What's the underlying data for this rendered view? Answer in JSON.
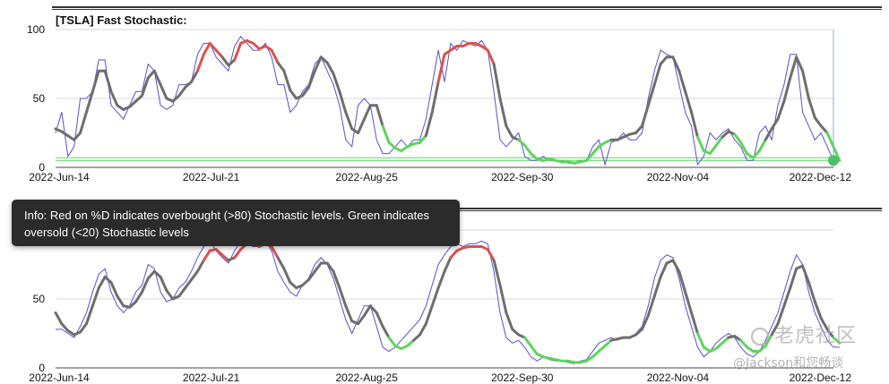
{
  "panels": [
    {
      "title": "[TSLA] Fast Stochastic:"
    },
    {
      "title": ""
    }
  ],
  "tooltip": {
    "text": "Info: Red on %D indicates overbought (>80) Stochastic levels. Green indicates oversold (<20) Stochastic levels"
  },
  "watermark": {
    "line1": "老虎社区",
    "line2": "@Jackson和您畅谈"
  },
  "colors": {
    "k_line": "#5b4fc9",
    "d_line": "#6e6e6e",
    "overbought": "#d9534f",
    "oversold": "#5cd65c",
    "grid": "#d8d8d8",
    "marker": "#4cbf6a"
  },
  "chart_data": [
    {
      "type": "line",
      "title": "[TSLA] Fast Stochastic:",
      "ylim": [
        0,
        100
      ],
      "yticks": [
        "0",
        "50",
        "100"
      ],
      "xticks": [
        "2022-Jun-14",
        "2022-Jul-21",
        "2022-Aug-25",
        "2022-Sep-30",
        "2022-Nov-04",
        "2022-Dec-12"
      ],
      "xrange": [
        0,
        126
      ],
      "reference_lines": [
        5,
        7
      ],
      "series": [
        {
          "role": "k",
          "values": [
            25,
            40,
            8,
            15,
            50,
            50,
            55,
            78,
            78,
            45,
            40,
            35,
            45,
            55,
            55,
            75,
            70,
            45,
            42,
            45,
            60,
            60,
            62,
            82,
            90,
            90,
            80,
            75,
            70,
            88,
            95,
            90,
            85,
            85,
            90,
            80,
            60,
            60,
            40,
            45,
            55,
            60,
            75,
            80,
            70,
            60,
            45,
            20,
            15,
            45,
            50,
            45,
            20,
            10,
            10,
            15,
            20,
            15,
            20,
            20,
            35,
            60,
            85,
            62,
            90,
            85,
            92,
            90,
            88,
            92,
            85,
            55,
            20,
            15,
            20,
            25,
            8,
            5,
            5,
            8,
            5,
            5,
            5,
            3,
            3,
            5,
            5,
            15,
            20,
            2,
            18,
            20,
            25,
            20,
            20,
            25,
            50,
            70,
            85,
            82,
            80,
            60,
            40,
            30,
            2,
            8,
            25,
            20,
            25,
            28,
            20,
            15,
            5,
            5,
            25,
            30,
            20,
            45,
            60,
            82,
            82,
            40,
            30,
            20,
            25,
            15,
            5,
            5
          ]
        },
        {
          "role": "d",
          "values": [
            28,
            26,
            23,
            20,
            25,
            40,
            55,
            70,
            70,
            55,
            45,
            42,
            44,
            48,
            52,
            65,
            70,
            60,
            50,
            48,
            52,
            58,
            62,
            70,
            82,
            90,
            85,
            80,
            74,
            78,
            90,
            92,
            90,
            86,
            88,
            85,
            76,
            70,
            56,
            50,
            52,
            58,
            70,
            80,
            76,
            68,
            55,
            40,
            28,
            25,
            35,
            45,
            45,
            30,
            18,
            14,
            12,
            15,
            17,
            18,
            23,
            40,
            62,
            82,
            85,
            88,
            88,
            90,
            90,
            88,
            85,
            75,
            50,
            30,
            22,
            20,
            16,
            10,
            6,
            5,
            6,
            5,
            4,
            4,
            3,
            4,
            5,
            10,
            15,
            18,
            20,
            20,
            22,
            24,
            25,
            30,
            45,
            60,
            75,
            80,
            80,
            70,
            55,
            40,
            22,
            12,
            10,
            16,
            22,
            26,
            24,
            18,
            10,
            7,
            12,
            20,
            28,
            35,
            48,
            65,
            80,
            70,
            50,
            36,
            30,
            25,
            15,
            5
          ]
        }
      ]
    },
    {
      "type": "line",
      "title": "",
      "ylim": [
        0,
        100
      ],
      "yticks": [
        "0",
        "50",
        ""
      ],
      "xticks": [
        "2022-Jun-14",
        "2022-Jul-21",
        "2022-Aug-25",
        "2022-Sep-30",
        "2022-Nov-04",
        "2022-Dec-12"
      ],
      "xrange": [
        0,
        126
      ],
      "series": [
        {
          "role": "k",
          "values": [
            28,
            28,
            25,
            22,
            30,
            40,
            55,
            68,
            72,
            55,
            45,
            40,
            45,
            55,
            60,
            75,
            72,
            55,
            48,
            50,
            58,
            62,
            70,
            80,
            88,
            92,
            85,
            80,
            76,
            85,
            92,
            90,
            88,
            88,
            92,
            85,
            70,
            62,
            55,
            52,
            60,
            65,
            75,
            80,
            75,
            65,
            50,
            35,
            25,
            35,
            45,
            45,
            30,
            15,
            12,
            15,
            20,
            25,
            30,
            35,
            45,
            60,
            75,
            82,
            88,
            90,
            88,
            90,
            90,
            92,
            90,
            70,
            40,
            22,
            18,
            20,
            15,
            8,
            5,
            8,
            6,
            5,
            5,
            4,
            3,
            5,
            6,
            12,
            18,
            20,
            22,
            20,
            22,
            22,
            25,
            30,
            45,
            65,
            78,
            82,
            80,
            65,
            45,
            30,
            15,
            8,
            12,
            18,
            22,
            25,
            22,
            15,
            10,
            8,
            12,
            20,
            30,
            40,
            55,
            70,
            82,
            75,
            55,
            40,
            30,
            20,
            15,
            15
          ]
        },
        {
          "role": "d",
          "values": [
            40,
            32,
            27,
            24,
            26,
            32,
            45,
            58,
            66,
            62,
            52,
            45,
            44,
            48,
            55,
            65,
            70,
            66,
            56,
            50,
            52,
            58,
            64,
            70,
            78,
            85,
            86,
            82,
            78,
            80,
            86,
            90,
            90,
            88,
            90,
            88,
            80,
            72,
            62,
            58,
            60,
            64,
            70,
            76,
            76,
            70,
            58,
            45,
            34,
            32,
            38,
            45,
            40,
            30,
            22,
            16,
            14,
            16,
            20,
            24,
            32,
            45,
            58,
            70,
            80,
            85,
            87,
            88,
            88,
            88,
            86,
            78,
            60,
            40,
            28,
            24,
            22,
            16,
            10,
            8,
            7,
            6,
            5,
            5,
            4,
            4,
            5,
            8,
            12,
            16,
            20,
            21,
            22,
            22,
            24,
            28,
            38,
            52,
            66,
            76,
            78,
            70,
            55,
            40,
            25,
            15,
            12,
            14,
            18,
            22,
            23,
            20,
            15,
            12,
            12,
            16,
            24,
            32,
            45,
            58,
            72,
            74,
            62,
            48,
            36,
            28,
            22,
            18
          ]
        }
      ]
    }
  ]
}
